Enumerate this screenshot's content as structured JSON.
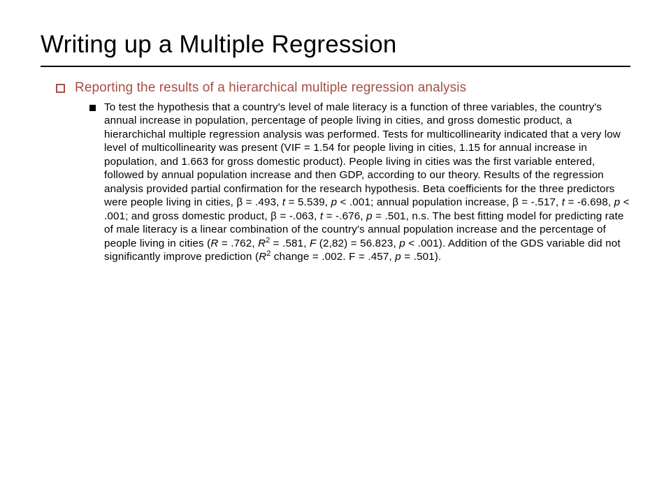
{
  "title": "Writing up a Multiple Regression",
  "level1": "Reporting the results of a hierarchical multiple regression analysis",
  "p_parts": {
    "a": "To test the hypothesis that a country's level of male literacy is a function of three variables, the country's annual increase in population, percentage of people living in cities, and gross domestic product, a hierarchichal multiple regression analysis was performed. Tests for multicollinearity indicated that a very low level of multicollinearity was present (VIF = 1.54  for people living in cities, 1.15  for annual increase in population, and 1.663 for gross domestic product). People living in cities was the first variable entered, followed by annual population increase and then GDP, according to our theory. Results of the regression analysis provided partial confirmation for the research hypothesis. Beta coefficients for the three predictors were people living in cities, β =  .493, ",
    "t1": "t",
    "b": " = 5.539, ",
    "p1": "p",
    "c": " <  .001;  annual population increase, β = -.517, ",
    "t2": "t",
    "d": " = -6.698, ",
    "p2": "p",
    "e": " <  .001;  and gross domestic product, β = -.063, ",
    "t3": "t",
    "f": " = -.676, ",
    "p3": "p",
    "g": " =  .501, n.s.  The best fitting model for predicting rate of male literacy is a linear combination of the country's annual population increase and the percentage of people living in cities (",
    "R1": "R",
    "h": " =  .762, ",
    "R2": "R",
    "sup2a": "2",
    "i": " = .581, ",
    "F1": "F",
    "j": " (2,82) = 56.823, ",
    "p4": "p",
    "k": " <  .001).  Addition of the GDS variable did not significantly improve prediction (",
    "R3": "R",
    "sup2b": "2",
    "l": " change = .002. F = .457, ",
    "p5": "p",
    "m": " = .501)."
  },
  "colors": {
    "accent": "#a64f41",
    "text": "#000000",
    "background": "#ffffff"
  }
}
